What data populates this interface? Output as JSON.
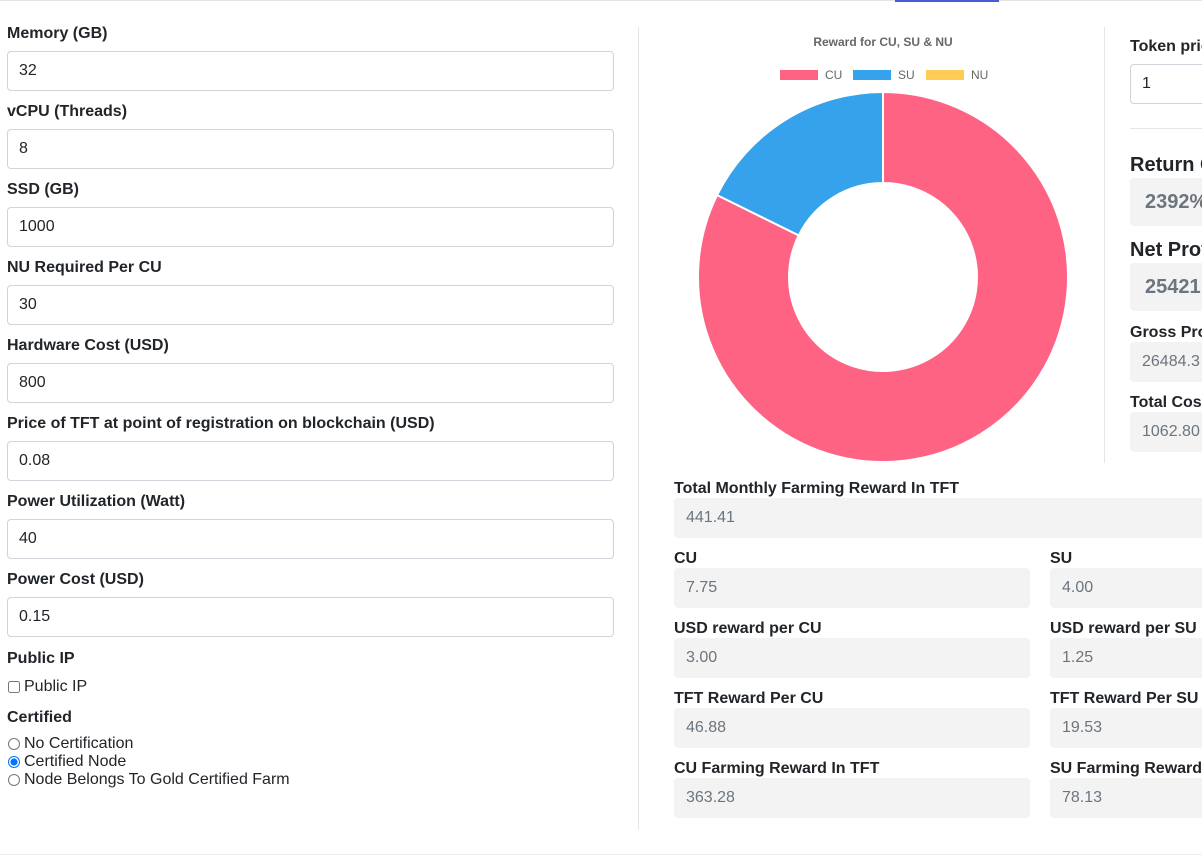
{
  "form": {
    "memory": {
      "label": "Memory (GB)",
      "value": "32"
    },
    "vcpu": {
      "label": "vCPU (Threads)",
      "value": "8"
    },
    "ssd": {
      "label": "SSD (GB)",
      "value": "1000"
    },
    "nu_per_cu": {
      "label": "NU Required Per CU",
      "value": "30"
    },
    "hardware_cost": {
      "label": "Hardware Cost (USD)",
      "value": "800"
    },
    "tft_price_registration": {
      "label": "Price of TFT at point of registration on blockchain (USD)",
      "value": "0.08"
    },
    "power_utilization": {
      "label": "Power Utilization (Watt)",
      "value": "40"
    },
    "power_cost": {
      "label": "Power Cost (USD)",
      "value": "0.15"
    },
    "public_ip": {
      "heading": "Public IP",
      "checkbox_label": "Public IP",
      "checked": false
    },
    "certified": {
      "heading": "Certified",
      "options": [
        {
          "label": "No Certification",
          "selected": false
        },
        {
          "label": "Certified Node",
          "selected": true
        },
        {
          "label": "Node Belongs To Gold Certified Farm",
          "selected": false
        }
      ]
    }
  },
  "chart": {
    "accent_colors": {
      "CU": "#ff6384",
      "SU": "#36a2eb",
      "NU": "#ffcd56"
    }
  },
  "chart_data": {
    "type": "pie",
    "title": "Reward for CU, SU & NU",
    "categories": [
      "CU",
      "SU",
      "NU"
    ],
    "values": [
      363.28,
      78.13,
      0
    ],
    "legend": "top"
  },
  "side": {
    "token_price_label": "Token pric",
    "token_price_value": "1",
    "return_label": "Return C",
    "return_value": "2392%",
    "net_profit_label": "Net Prof",
    "net_profit_value": "25421",
    "gross_profit_label": "Gross Pro",
    "gross_profit_value": "26484.3",
    "total_cost_label": "Total Cos",
    "total_cost_value": "1062.80"
  },
  "results": {
    "total_monthly": {
      "label": "Total Monthly Farming Reward In TFT",
      "value": "441.41"
    },
    "cu": {
      "label": "CU",
      "value": "7.75"
    },
    "su": {
      "label": "SU",
      "value": "4.00"
    },
    "usd_per_cu": {
      "label": "USD reward per CU",
      "value": "3.00"
    },
    "usd_per_su": {
      "label": "USD reward per SU",
      "value": "1.25"
    },
    "tft_per_cu": {
      "label": "TFT Reward Per CU",
      "value": "46.88"
    },
    "tft_per_su": {
      "label": "TFT Reward Per SU",
      "value": "19.53"
    },
    "cu_farming": {
      "label": "CU Farming Reward In TFT",
      "value": "363.28"
    },
    "su_farming": {
      "label": "SU Farming Reward",
      "value": "78.13"
    }
  }
}
